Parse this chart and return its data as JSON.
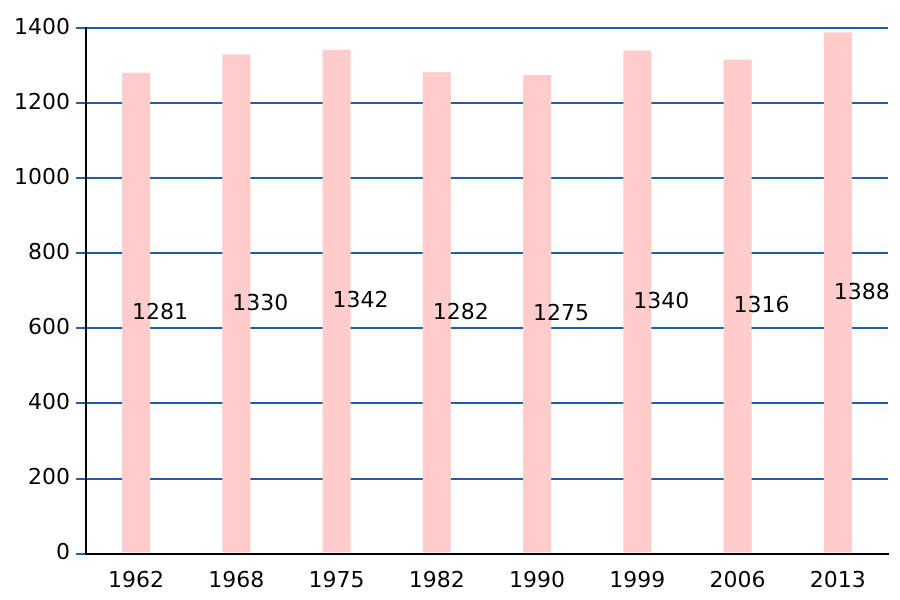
{
  "chart_data": {
    "type": "bar",
    "categories": [
      "1962",
      "1968",
      "1975",
      "1982",
      "1990",
      "1999",
      "2006",
      "2013"
    ],
    "values": [
      1281,
      1330,
      1342,
      1282,
      1275,
      1340,
      1316,
      1388
    ],
    "color": "#ffcccc",
    "ylim": [
      0,
      1400
    ],
    "yticks": [
      0,
      200,
      400,
      600,
      800,
      1000,
      1200,
      1400
    ],
    "grid": "y",
    "data_labels": true
  }
}
